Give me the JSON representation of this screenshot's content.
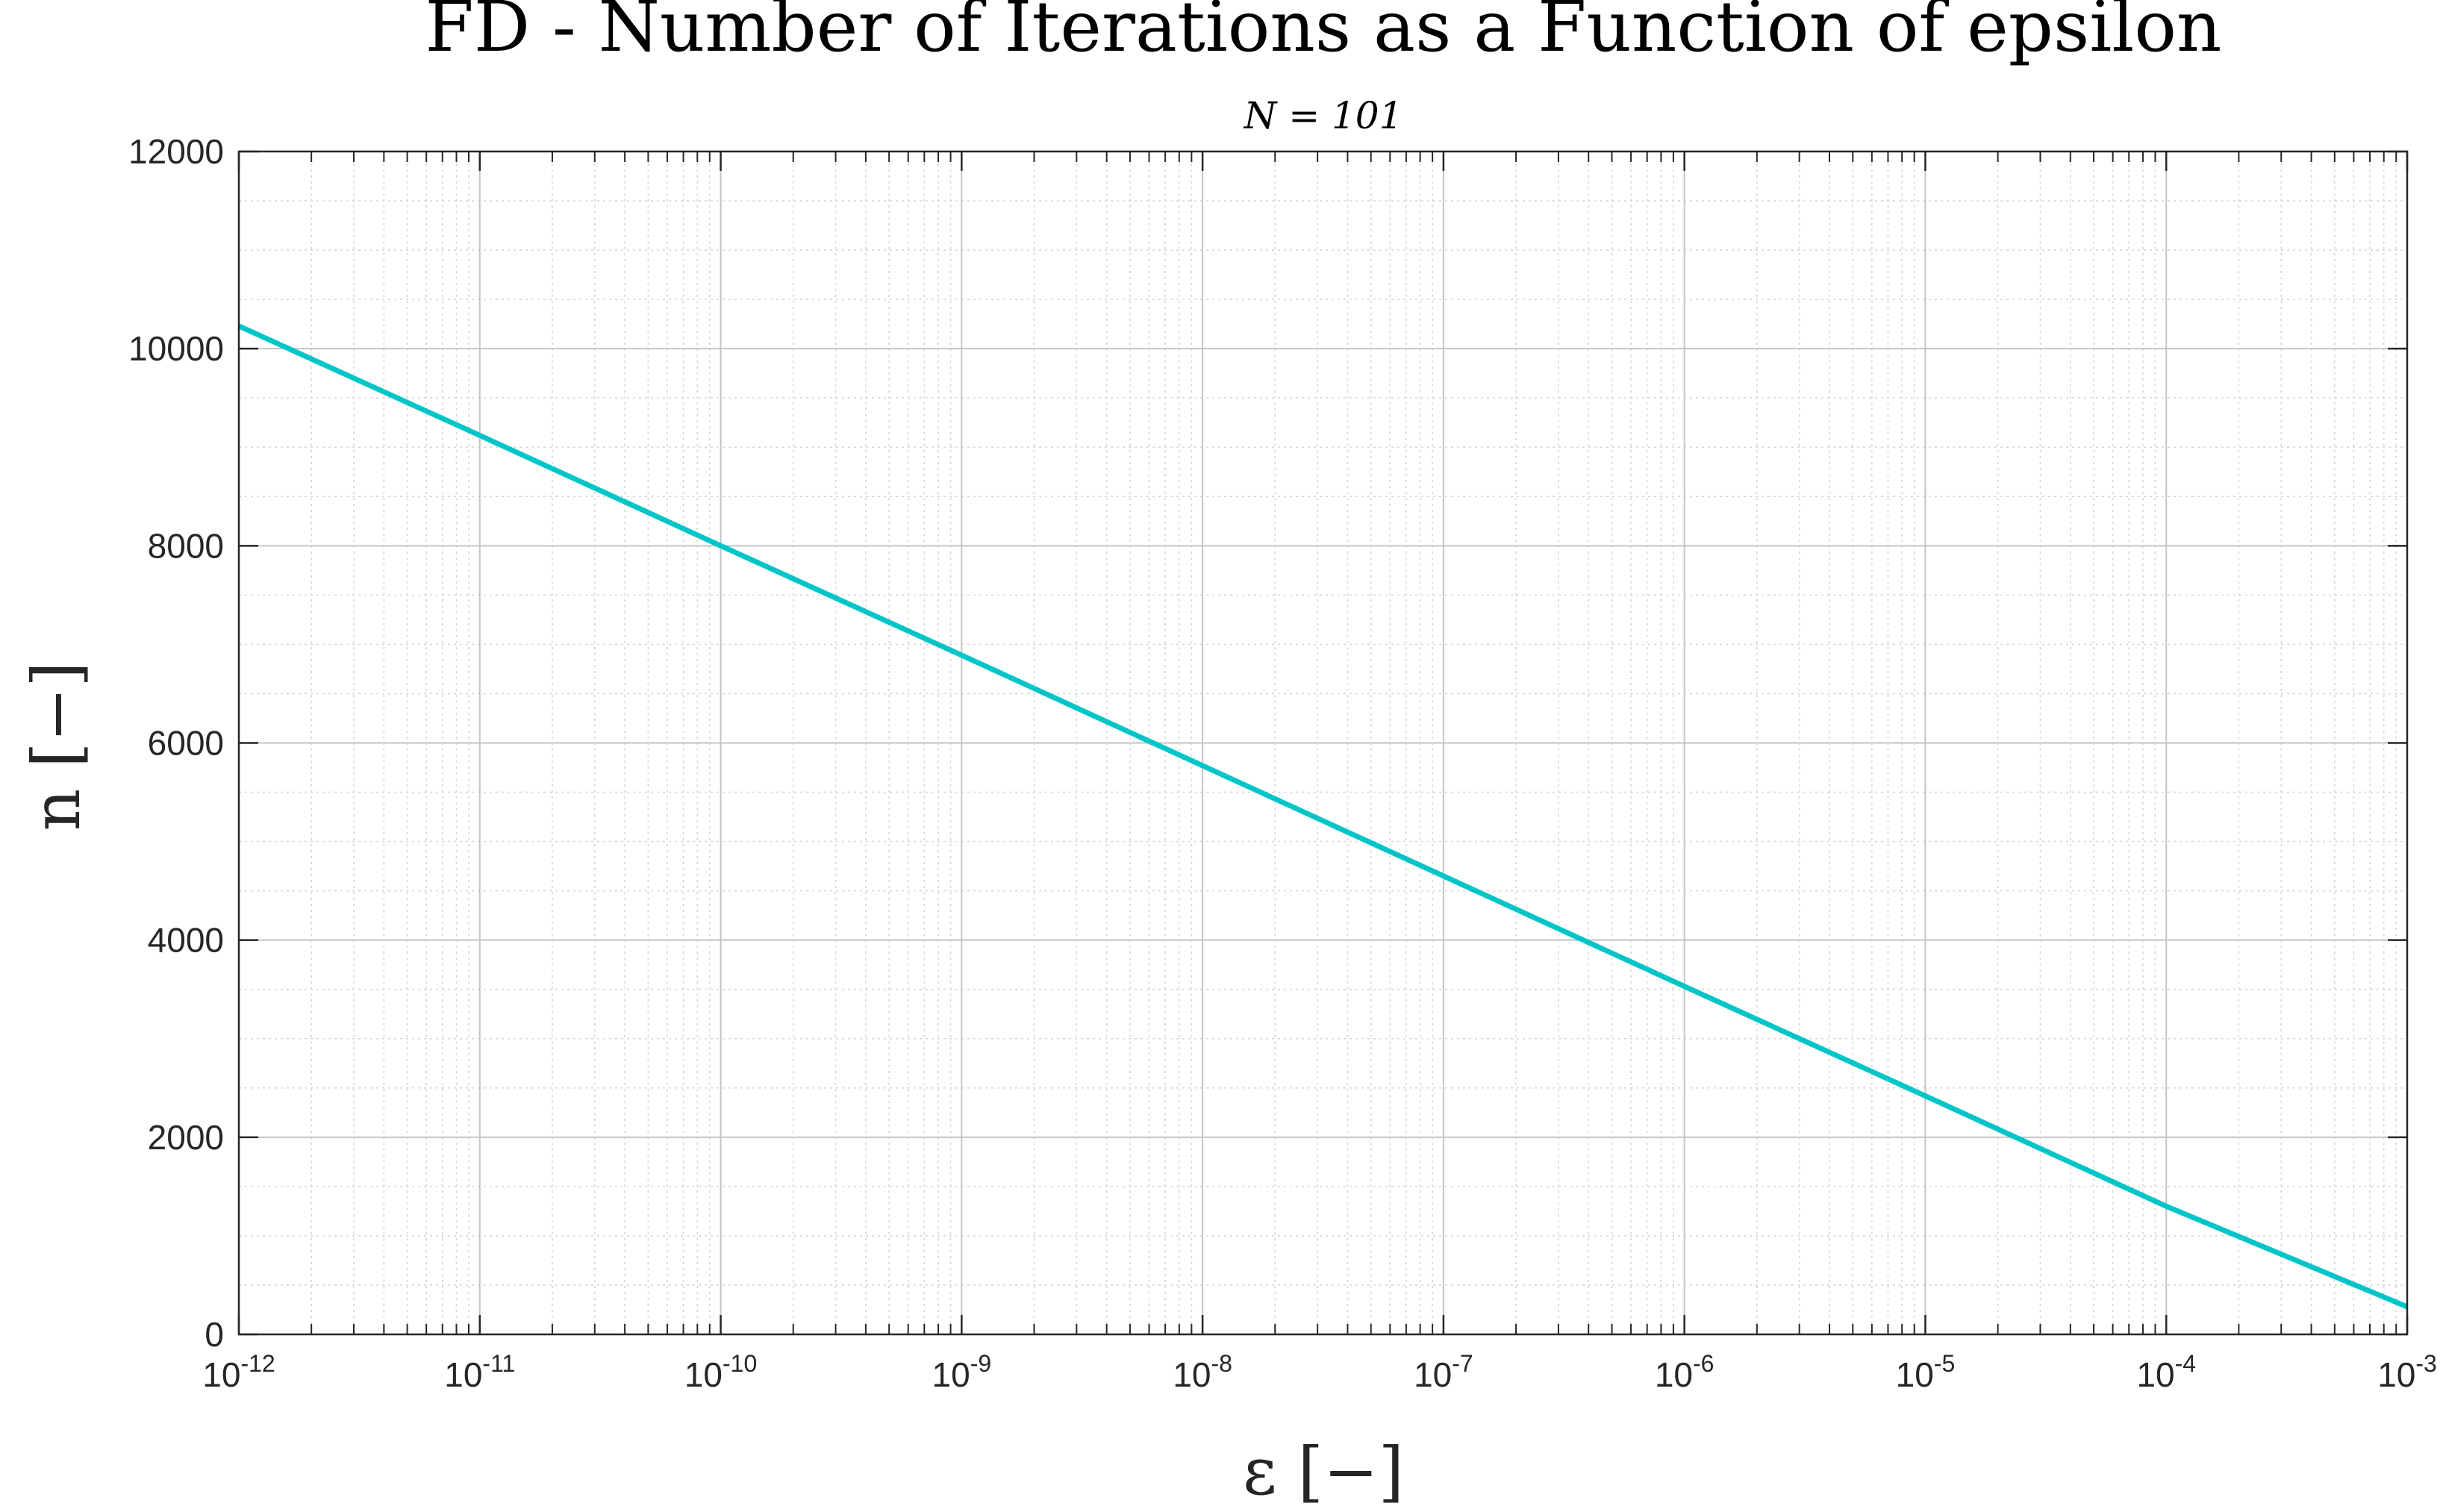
{
  "chart_data": {
    "type": "line",
    "title": "FD - Number of Iterations as a Function of epsilon",
    "subtitle": "N = 101",
    "xlabel": "ε [−]",
    "ylabel": "n [−]",
    "x_scale": "log",
    "xlim": [
      1e-12,
      0.001
    ],
    "ylim": [
      0,
      12000
    ],
    "x_tick_labels": [
      {
        "base": "10",
        "exp": "-12"
      },
      {
        "base": "10",
        "exp": "-11"
      },
      {
        "base": "10",
        "exp": "-10"
      },
      {
        "base": "10",
        "exp": "-9"
      },
      {
        "base": "10",
        "exp": "-8"
      },
      {
        "base": "10",
        "exp": "-7"
      },
      {
        "base": "10",
        "exp": "-6"
      },
      {
        "base": "10",
        "exp": "-5"
      },
      {
        "base": "10",
        "exp": "-4"
      },
      {
        "base": "10",
        "exp": "-3"
      }
    ],
    "y_tick_labels": [
      "0",
      "2000",
      "4000",
      "6000",
      "8000",
      "10000",
      "12000"
    ],
    "grid": true,
    "minor_grid": true,
    "series": [
      {
        "color": "#00c5c8",
        "x": [
          1e-12,
          1e-11,
          1e-10,
          1e-09,
          1e-08,
          1e-07,
          1e-06,
          1e-05,
          0.0001,
          0.001
        ],
        "y": [
          10230,
          9120,
          8000,
          6890,
          5770,
          4650,
          3530,
          2420,
          1300,
          280
        ]
      }
    ]
  }
}
